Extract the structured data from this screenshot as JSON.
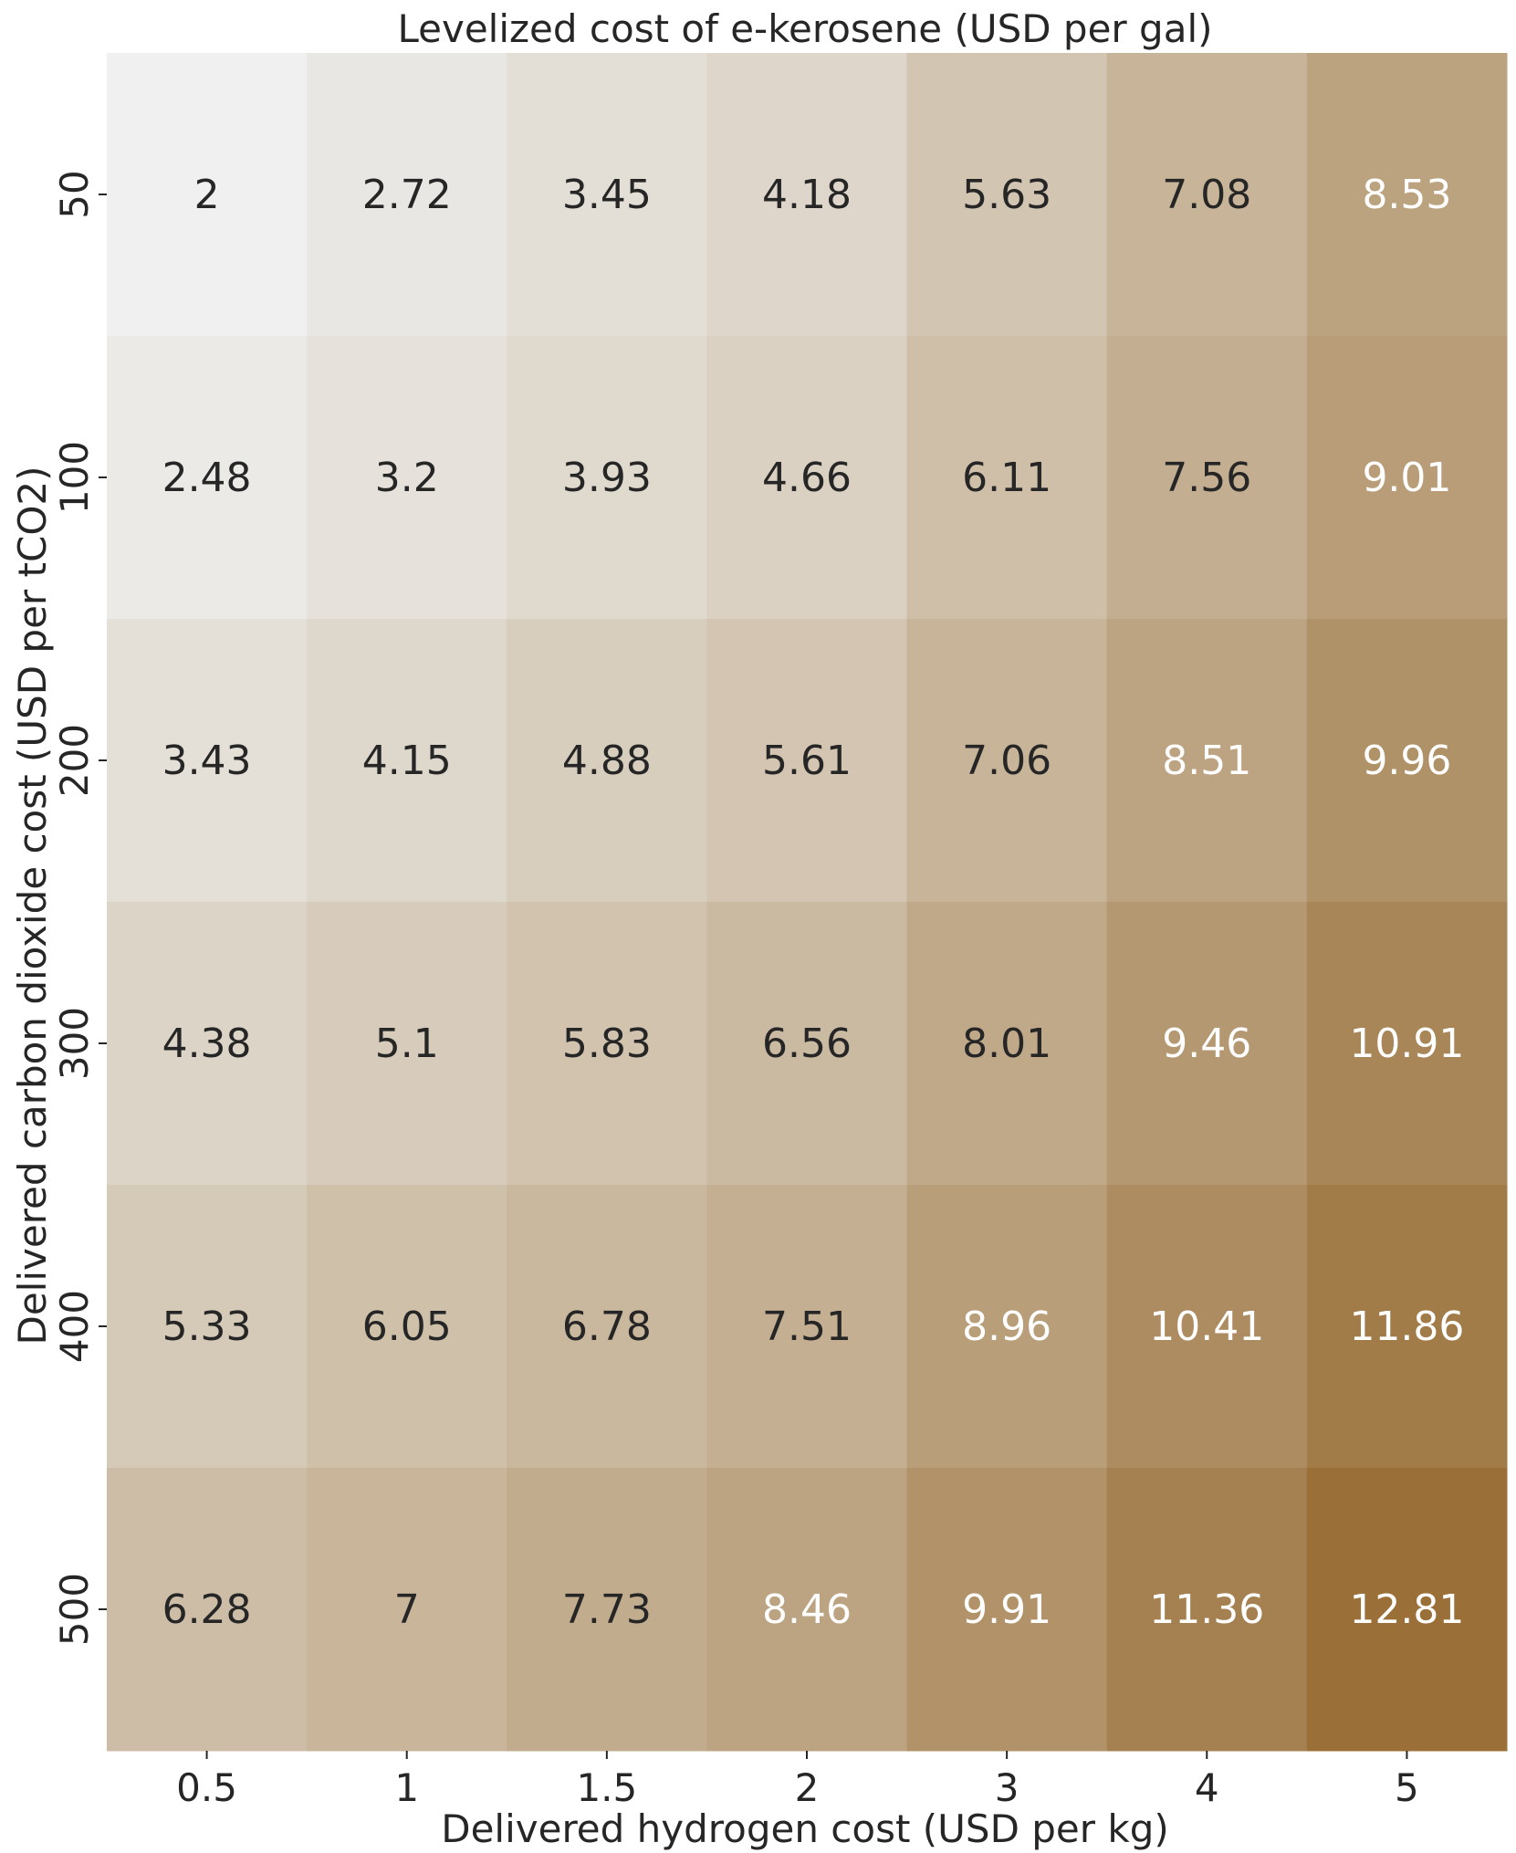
{
  "chart_data": {
    "type": "heatmap",
    "title": "Levelized cost of e-kerosene (USD per gal)",
    "xlabel": "Delivered hydrogen cost (USD per kg)",
    "ylabel": "Delivered carbon dioxide cost (USD per tCO2)",
    "x_categories": [
      "0.5",
      "1",
      "1.5",
      "2",
      "3",
      "4",
      "5"
    ],
    "y_categories": [
      "50",
      "100",
      "200",
      "300",
      "400",
      "500"
    ],
    "cell_labels": [
      [
        "2",
        "2.72",
        "3.45",
        "4.18",
        "5.63",
        "7.08",
        "8.53"
      ],
      [
        "2.48",
        "3.2",
        "3.93",
        "4.66",
        "6.11",
        "7.56",
        "9.01"
      ],
      [
        "3.43",
        "4.15",
        "4.88",
        "5.61",
        "7.06",
        "8.51",
        "9.96"
      ],
      [
        "4.38",
        "5.1",
        "5.83",
        "6.56",
        "8.01",
        "9.46",
        "10.91"
      ],
      [
        "5.33",
        "6.05",
        "6.78",
        "7.51",
        "8.96",
        "10.41",
        "11.86"
      ],
      [
        "6.28",
        "7",
        "7.73",
        "8.46",
        "9.91",
        "11.36",
        "12.81"
      ]
    ],
    "values": [
      [
        2,
        2.72,
        3.45,
        4.18,
        5.63,
        7.08,
        8.53
      ],
      [
        2.48,
        3.2,
        3.93,
        4.66,
        6.11,
        7.56,
        9.01
      ],
      [
        3.43,
        4.15,
        4.88,
        5.61,
        7.06,
        8.51,
        9.96
      ],
      [
        4.38,
        5.1,
        5.83,
        6.56,
        8.01,
        9.46,
        10.91
      ],
      [
        5.33,
        6.05,
        6.78,
        7.51,
        8.96,
        10.41,
        11.86
      ],
      [
        6.28,
        7,
        7.73,
        8.46,
        9.91,
        11.36,
        12.81
      ]
    ],
    "color_range": [
      2,
      12.81
    ],
    "colormap": {
      "low": "#eff0ef",
      "high": "#9a7038"
    },
    "label_colors": {
      "dark": "#262626",
      "light": "#ffffff"
    },
    "light_label_threshold": 8.4
  }
}
